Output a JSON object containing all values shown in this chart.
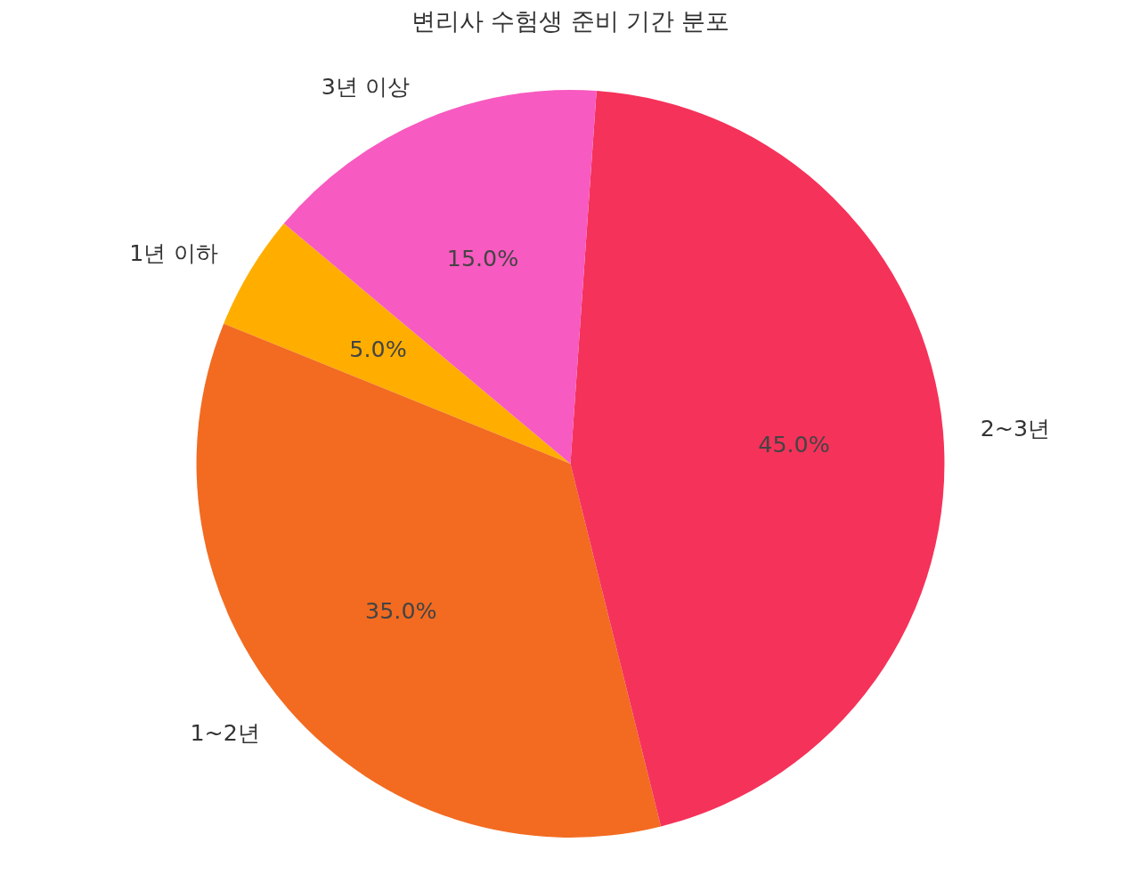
{
  "chart_data": {
    "type": "pie",
    "title": "변리사 수험생 준비 기간 분포",
    "categories": [
      "1년 이하",
      "1~2년",
      "2~3년",
      "3년 이상"
    ],
    "values": [
      5,
      35,
      45,
      15
    ],
    "colors": [
      "#ffae00",
      "#f26b21",
      "#f5325a",
      "#f75ac0"
    ],
    "value_labels": [
      "5.0%",
      "35.0%",
      "45.0%",
      "15.0%"
    ]
  }
}
